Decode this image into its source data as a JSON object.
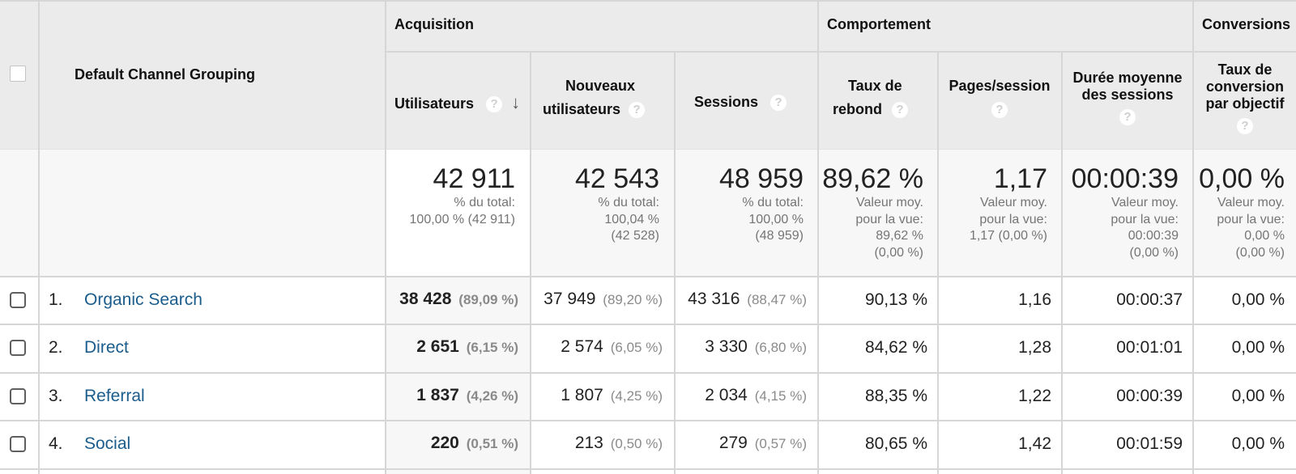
{
  "header": {
    "dimension_label": "Default Channel Grouping",
    "groups": {
      "acquisition": "Acquisition",
      "behavior": "Comportement",
      "conversions": "Conversions"
    },
    "cols": {
      "users": "Utilisateurs",
      "new_users_1": "Nouveaux",
      "new_users_2": "utilisateurs",
      "sessions": "Sessions",
      "bounce_1": "Taux de",
      "bounce_2": "rebond",
      "pages": "Pages/session",
      "duration_1": "Durée moyenne",
      "duration_2": "des sessions",
      "conv_1": "Taux de",
      "conv_2": "conversion",
      "conv_3": "par objectif"
    },
    "help_glyph": "?",
    "sort_glyph": "↓"
  },
  "totals": {
    "users": {
      "value": "42 911",
      "sub": "% du total:\n100,00 % (42 911)"
    },
    "new_users": {
      "value": "42 543",
      "sub": "% du total:\n100,04 %\n(42 528)"
    },
    "sessions": {
      "value": "48 959",
      "sub": "% du total:\n100,00 %\n(48 959)"
    },
    "bounce": {
      "value": "89,62 %",
      "sub": "Valeur moy.\npour la vue:\n89,62 %\n(0,00 %)"
    },
    "pages": {
      "value": "1,17",
      "sub": "Valeur moy.\npour la vue:\n1,17 (0,00 %)"
    },
    "duration": {
      "value": "00:00:39",
      "sub": "Valeur moy.\npour la vue:\n00:00:39\n(0,00 %)"
    },
    "conv": {
      "value": "0,00 %",
      "sub": "Valeur moy.\npour la vue:\n0,00 %\n(0,00 %)"
    }
  },
  "rows": [
    {
      "index": "1.",
      "channel": "Organic Search",
      "users": "38 428",
      "users_pct": "(89,09 %)",
      "new_users": "37 949",
      "new_users_pct": "(89,20 %)",
      "sessions": "43 316",
      "sessions_pct": "(88,47 %)",
      "bounce": "90,13 %",
      "pages": "1,16",
      "duration": "00:00:37",
      "conv": "0,00 %"
    },
    {
      "index": "2.",
      "channel": "Direct",
      "users": "2 651",
      "users_pct": "(6,15 %)",
      "new_users": "2 574",
      "new_users_pct": "(6,05 %)",
      "sessions": "3 330",
      "sessions_pct": "(6,80 %)",
      "bounce": "84,62 %",
      "pages": "1,28",
      "duration": "00:01:01",
      "conv": "0,00 %"
    },
    {
      "index": "3.",
      "channel": "Referral",
      "users": "1 837",
      "users_pct": "(4,26 %)",
      "new_users": "1 807",
      "new_users_pct": "(4,25 %)",
      "sessions": "2 034",
      "sessions_pct": "(4,15 %)",
      "bounce": "88,35 %",
      "pages": "1,22",
      "duration": "00:00:39",
      "conv": "0,00 %"
    },
    {
      "index": "4.",
      "channel": "Social",
      "users": "220",
      "users_pct": "(0,51 %)",
      "new_users": "213",
      "new_users_pct": "(0,50 %)",
      "sessions": "279",
      "sessions_pct": "(0,57 %)",
      "bounce": "80,65 %",
      "pages": "1,42",
      "duration": "00:01:59",
      "conv": "0,00 %"
    }
  ]
}
